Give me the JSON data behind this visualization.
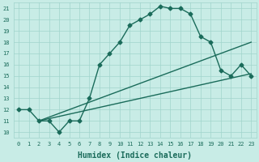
{
  "xlabel": "Humidex (Indice chaleur)",
  "ylabel": "",
  "bg_color": "#c8ece6",
  "grid_color": "#a0d4cc",
  "line_color": "#1a6b5a",
  "xlim": [
    -0.5,
    23.5
  ],
  "ylim": [
    9.5,
    21.5
  ],
  "xticks": [
    0,
    1,
    2,
    3,
    4,
    5,
    6,
    7,
    8,
    9,
    10,
    11,
    12,
    13,
    14,
    15,
    16,
    17,
    18,
    19,
    20,
    21,
    22,
    23
  ],
  "yticks": [
    10,
    11,
    12,
    13,
    14,
    15,
    16,
    17,
    18,
    19,
    20,
    21
  ],
  "line1_x": [
    0,
    1,
    2,
    3,
    4,
    5,
    6,
    7,
    8,
    9,
    10,
    11,
    12,
    13,
    14,
    15,
    16,
    17,
    18,
    19,
    20,
    21,
    22,
    23
  ],
  "line1_y": [
    12,
    12,
    11,
    11,
    10,
    11,
    11,
    13,
    16,
    17,
    18,
    19.5,
    20,
    20.5,
    21.2,
    21,
    21,
    20.5,
    18.5,
    18,
    15.5,
    15,
    16,
    15
  ],
  "line2_x": [
    2,
    23
  ],
  "line2_y": [
    11,
    18.0
  ],
  "line3_x": [
    2,
    23
  ],
  "line3_y": [
    11,
    15.2
  ],
  "marker": "D",
  "marker_size": 2.5,
  "line_width": 1.0,
  "tick_fontsize": 5.0,
  "xlabel_fontsize": 7.0
}
